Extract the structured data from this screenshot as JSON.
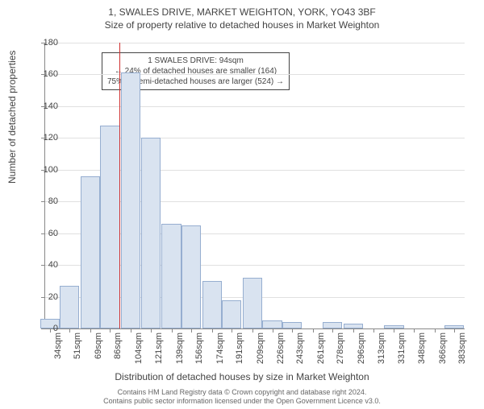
{
  "title_main": "1, SWALES DRIVE, MARKET WEIGHTON, YORK, YO43 3BF",
  "title_sub": "Size of property relative to detached houses in Market Weighton",
  "ylabel": "Number of detached properties",
  "xlabel": "Distribution of detached houses by size in Market Weighton",
  "attribution_line1": "Contains HM Land Registry data © Crown copyright and database right 2024.",
  "attribution_line2": "Contains public sector information licensed under the Open Government Licence v3.0.",
  "annotation": {
    "line1": "1 SWALES DRIVE: 94sqm",
    "line2": "← 24% of detached houses are smaller (164)",
    "line3": "75% of semi-detached houses are larger (524) →"
  },
  "chart": {
    "type": "histogram",
    "ylim": [
      0,
      180
    ],
    "ytick_step": 20,
    "ref_x_value": 94,
    "ref_color": "#d03030",
    "bar_fill": "#d9e3f0",
    "bar_border": "#96aed0",
    "grid_color": "#e0e0e0",
    "axis_color": "#888888",
    "text_color": "#444444",
    "background": "#ffffff",
    "x_range": [
      30,
      392
    ],
    "bars": [
      {
        "label": "34sqm",
        "x": 34,
        "v": 6
      },
      {
        "label": "51sqm",
        "x": 51,
        "v": 27
      },
      {
        "label": "69sqm",
        "x": 69,
        "v": 96
      },
      {
        "label": "86sqm",
        "x": 86,
        "v": 128
      },
      {
        "label": "104sqm",
        "x": 104,
        "v": 161
      },
      {
        "label": "121sqm",
        "x": 121,
        "v": 120
      },
      {
        "label": "139sqm",
        "x": 139,
        "v": 66
      },
      {
        "label": "156sqm",
        "x": 156,
        "v": 65
      },
      {
        "label": "174sqm",
        "x": 174,
        "v": 30
      },
      {
        "label": "191sqm",
        "x": 191,
        "v": 18
      },
      {
        "label": "209sqm",
        "x": 209,
        "v": 32
      },
      {
        "label": "226sqm",
        "x": 226,
        "v": 5
      },
      {
        "label": "243sqm",
        "x": 243,
        "v": 4
      },
      {
        "label": "261sqm",
        "x": 261,
        "v": 0
      },
      {
        "label": "278sqm",
        "x": 278,
        "v": 4
      },
      {
        "label": "296sqm",
        "x": 296,
        "v": 3
      },
      {
        "label": "313sqm",
        "x": 313,
        "v": 0
      },
      {
        "label": "331sqm",
        "x": 331,
        "v": 2
      },
      {
        "label": "348sqm",
        "x": 348,
        "v": 0
      },
      {
        "label": "366sqm",
        "x": 366,
        "v": 0
      },
      {
        "label": "383sqm",
        "x": 383,
        "v": 2
      }
    ]
  }
}
